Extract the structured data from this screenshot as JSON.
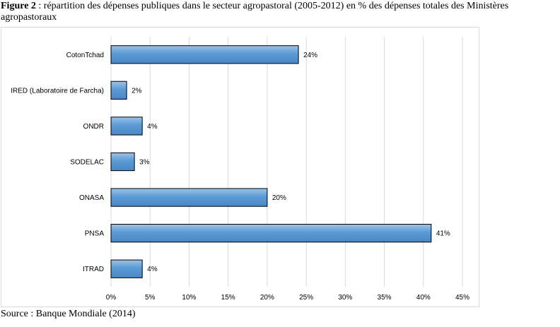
{
  "caption": {
    "label": "Figure 2",
    "text": " : répartition des dépenses publiques dans le secteur agropastoral (2005-2012) en % des dépenses totales des Ministères agropastoraux"
  },
  "source": "Source : Banque Mondiale (2014)",
  "chart_data": {
    "type": "bar",
    "orientation": "horizontal",
    "categories": [
      "CotonTchad",
      "IRED (Laboratoire de Farcha)",
      "ONDR",
      "SODELAC",
      "ONASA",
      "PNSA",
      "ITRAD"
    ],
    "values": [
      24,
      2,
      4,
      3,
      20,
      41,
      4
    ],
    "value_labels": [
      "24%",
      "2%",
      "4%",
      "3%",
      "20%",
      "41%",
      "4%"
    ],
    "x_ticks": [
      0,
      5,
      10,
      15,
      20,
      25,
      30,
      35,
      40,
      45
    ],
    "x_tick_labels": [
      "0%",
      "5%",
      "10%",
      "15%",
      "20%",
      "25%",
      "30%",
      "35%",
      "40%",
      "45%"
    ],
    "xlim": [
      0,
      45
    ],
    "grid": "vertical",
    "bar_color": "#5b9bd5",
    "bar_gradient_top": "#9dc3e6",
    "bar_border": "#000000",
    "grid_color": "#d9d9d9"
  }
}
